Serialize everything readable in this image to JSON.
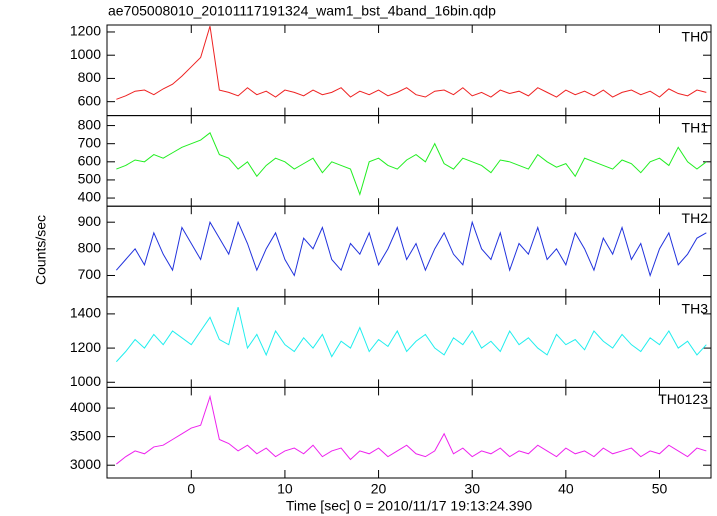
{
  "chart_data": {
    "type": "line",
    "title": "ae705008010_20101117191324_wam1_bst_4band_16bin.qdp",
    "x_label": "Time [sec] 0 = 2010/11/17 19:13:24.390",
    "y_label": "Counts/sec",
    "xlim": [
      -9,
      55.5
    ],
    "xticks": [
      0,
      10,
      20,
      30,
      40,
      50
    ],
    "x": [
      -8,
      -7,
      -6,
      -5,
      -4,
      -3,
      -2,
      -1,
      0,
      1,
      2,
      3,
      4,
      5,
      6,
      7,
      8,
      9,
      10,
      11,
      12,
      13,
      14,
      15,
      16,
      17,
      18,
      19,
      20,
      21,
      22,
      23,
      24,
      25,
      26,
      27,
      28,
      29,
      30,
      31,
      32,
      33,
      34,
      35,
      36,
      37,
      38,
      39,
      40,
      41,
      42,
      43,
      44,
      45,
      46,
      47,
      48,
      49,
      50,
      51,
      52,
      53,
      54,
      55
    ],
    "series": [
      {
        "name": "TH0",
        "color": "#ee2222",
        "ylim": [
          480,
          1260
        ],
        "yticks": [
          600,
          800,
          1000,
          1200
        ],
        "values": [
          620,
          650,
          690,
          700,
          660,
          710,
          750,
          820,
          900,
          980,
          1250,
          700,
          680,
          650,
          720,
          660,
          690,
          640,
          700,
          680,
          650,
          700,
          660,
          680,
          720,
          640,
          690,
          660,
          700,
          650,
          680,
          720,
          660,
          640,
          690,
          700,
          660,
          720,
          650,
          680,
          640,
          700,
          670,
          690,
          650,
          720,
          680,
          640,
          700,
          660,
          690,
          650,
          700,
          640,
          680,
          700,
          660,
          690,
          640,
          710,
          670,
          650,
          700,
          680
        ]
      },
      {
        "name": "TH1",
        "color": "#22ee22",
        "ylim": [
          355,
          855
        ],
        "yticks": [
          400,
          500,
          600,
          700,
          800
        ],
        "values": [
          560,
          580,
          610,
          600,
          640,
          620,
          650,
          680,
          700,
          720,
          760,
          640,
          620,
          560,
          600,
          520,
          580,
          620,
          600,
          560,
          590,
          620,
          540,
          600,
          580,
          560,
          420,
          600,
          620,
          580,
          560,
          610,
          640,
          600,
          700,
          590,
          560,
          620,
          600,
          580,
          540,
          610,
          600,
          580,
          560,
          640,
          600,
          570,
          590,
          520,
          620,
          600,
          580,
          560,
          610,
          590,
          540,
          600,
          620,
          580,
          680,
          600,
          560,
          600
        ]
      },
      {
        "name": "TH2",
        "color": "#2233dd",
        "ylim": [
          620,
          960
        ],
        "yticks": [
          700,
          800,
          900
        ],
        "values": [
          720,
          760,
          800,
          740,
          860,
          780,
          720,
          880,
          820,
          760,
          900,
          840,
          780,
          900,
          820,
          720,
          800,
          860,
          760,
          700,
          840,
          800,
          880,
          760,
          720,
          820,
          780,
          860,
          740,
          800,
          880,
          760,
          820,
          720,
          800,
          860,
          780,
          740,
          900,
          800,
          760,
          860,
          720,
          820,
          780,
          880,
          760,
          800,
          740,
          860,
          800,
          720,
          840,
          780,
          880,
          760,
          820,
          700,
          800,
          860,
          740,
          780,
          840,
          860
        ]
      },
      {
        "name": "TH3",
        "color": "#22eeee",
        "ylim": [
          970,
          1500
        ],
        "yticks": [
          1000,
          1200,
          1400
        ],
        "values": [
          1120,
          1180,
          1250,
          1200,
          1280,
          1220,
          1300,
          1260,
          1220,
          1300,
          1380,
          1250,
          1220,
          1440,
          1200,
          1280,
          1160,
          1300,
          1220,
          1180,
          1260,
          1200,
          1280,
          1150,
          1240,
          1200,
          1320,
          1180,
          1250,
          1210,
          1300,
          1180,
          1240,
          1280,
          1200,
          1160,
          1260,
          1220,
          1300,
          1200,
          1240,
          1180,
          1300,
          1220,
          1260,
          1200,
          1160,
          1280,
          1220,
          1250,
          1190,
          1300,
          1240,
          1200,
          1280,
          1220,
          1180,
          1260,
          1220,
          1300,
          1200,
          1240,
          1160,
          1220
        ]
      },
      {
        "name": "TH0123",
        "color": "#ee22ee",
        "ylim": [
          2776,
          4362
        ],
        "yticks": [
          3000,
          3500,
          4000
        ],
        "values": [
          3020,
          3150,
          3250,
          3200,
          3320,
          3350,
          3450,
          3550,
          3650,
          3700,
          4200,
          3450,
          3380,
          3250,
          3350,
          3200,
          3300,
          3150,
          3250,
          3300,
          3200,
          3350,
          3150,
          3250,
          3300,
          3100,
          3250,
          3200,
          3300,
          3150,
          3250,
          3350,
          3200,
          3150,
          3250,
          3550,
          3200,
          3300,
          3150,
          3250,
          3200,
          3300,
          3150,
          3250,
          3200,
          3350,
          3250,
          3150,
          3300,
          3200,
          3250,
          3150,
          3300,
          3200,
          3250,
          3300,
          3150,
          3250,
          3200,
          3350,
          3250,
          3150,
          3300,
          3250
        ]
      }
    ]
  }
}
